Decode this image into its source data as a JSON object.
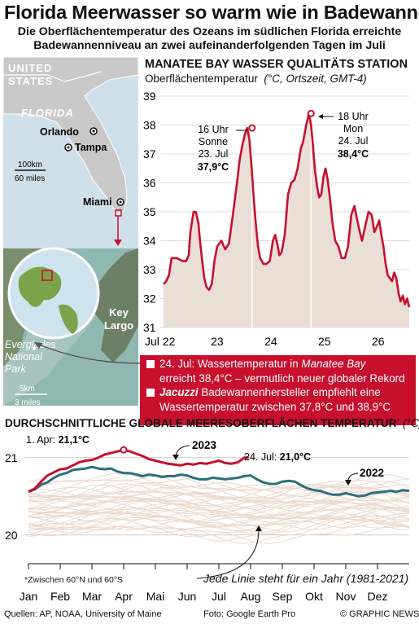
{
  "title": "Florida Meerwasser so warm wie in Badewanne",
  "subtitle_line1": "Die Oberflächentemperatur des Ozeans im südlichen Florida erreichte",
  "subtitle_line2": "Badewannenniveau an zwei aufeinanderfolgenden Tagen im Juli",
  "map": {
    "country_line1": "UNITED",
    "country_line2": "STATES",
    "state": "FLORIDA",
    "cities": [
      "Orlando",
      "Tampa",
      "Miami"
    ],
    "scale_top_km": "100km",
    "scale_top_miles": "60 miles",
    "inset_label1": "Everglades",
    "inset_label2": "National",
    "inset_label3": "Park",
    "key1": "Key",
    "key2": "Largo",
    "scale_bottom_km": "5km",
    "scale_bottom_miles": "3 miles",
    "colors": {
      "land": "#c8c8c8",
      "water": "#8fb7cf",
      "accent": "#c8102e"
    }
  },
  "chart1": {
    "title": "MANATEE BAY WASSER QUALITÄTS STATION",
    "subtitle_main": "Oberflächentemperatur",
    "subtitle_unit": "(°C, Ortszeit, GMT-4)",
    "peak1_time": "16 Uhr",
    "peak1_day": "Sonne",
    "peak1_date": "23. Jul",
    "peak1_value": "37,9°C",
    "peak2_time": "18 Uhr",
    "peak2_day": "Mon",
    "peak2_date": "24. Jul",
    "peak2_value": "38,4°C"
  },
  "callout": {
    "item1_a": "24. Jul: Wassertemperatur in ",
    "item1_b": "Manatee Bay",
    "item1_c": "erreicht 38,4°C – vermutlich neuer globaler Rekord",
    "item2_a": "Jacuzzi",
    "item2_b": " Badewannenhersteller empfiehlt eine",
    "item2_c": "Wassertemperatur zwischen 37,8°C und 38,9°C"
  },
  "chart2": {
    "title": "DURCHSCHNITTLICHE GLOBALE MEERESOBERFLÄCHEN TEMPERATUR",
    "title_sup": "*",
    "unit": "(°C)",
    "label_2023": "2023",
    "label_2022": "2022",
    "apr_note_a": "1. Apr: ",
    "apr_note_b": "21,1°C",
    "jul_note_a": "24. Jul: ",
    "jul_note_b": "21,0°C"
  },
  "footnote": "*Zwischen 60°N und 60°S",
  "lines_note": "Jede Linie steht für ein Jahr (1981-2021)",
  "sources": "Quellen: AP, NOAA, University of Maine",
  "photo": "Foto: Google Earth Pro",
  "credit": "© GRAPHIC NEWS",
  "colors": {
    "red": "#c8102e",
    "teal": "#2c6e80",
    "area": "#eadfd6",
    "faint": "#ecd9cc"
  },
  "chart_data": [
    {
      "type": "area",
      "title": "MANATEE BAY WASSER QUALITÄTS STATION",
      "ylabel": "Oberflächentemperatur (°C)",
      "x_ticks": [
        "Jul 22",
        "23",
        "24",
        "25",
        "26"
      ],
      "y_ticks": [
        31,
        32,
        33,
        34,
        35,
        36,
        37,
        38,
        39
      ],
      "xlim": [
        22.0,
        26.58
      ],
      "ylim": [
        31,
        39
      ],
      "series": [
        {
          "x": [
            22.0,
            22.05,
            22.1,
            22.15,
            22.25,
            22.35,
            22.42,
            22.47,
            22.5,
            22.56,
            22.6,
            22.65,
            22.68,
            22.72,
            22.76,
            22.8,
            22.85,
            22.9,
            22.95,
            23.0,
            23.08,
            23.15,
            23.22,
            23.3,
            23.37,
            23.42,
            23.47,
            23.52,
            23.56,
            23.6,
            23.64,
            23.68,
            23.72,
            23.76,
            23.8,
            23.86,
            23.92,
            23.98,
            24.04,
            24.08,
            24.12,
            24.16,
            24.2,
            24.26,
            24.32,
            24.38,
            24.44,
            24.5,
            24.56,
            24.6,
            24.66,
            24.71,
            24.75,
            24.78,
            24.82,
            24.86,
            24.9,
            24.94,
            24.98,
            25.02,
            25.06,
            25.1,
            25.15,
            25.2,
            25.26,
            25.32,
            25.38,
            25.44,
            25.5,
            25.56,
            25.6,
            25.66,
            25.7,
            25.76,
            25.82,
            25.88,
            25.93,
            25.98,
            26.02,
            26.06,
            26.1,
            26.14,
            26.18,
            26.22,
            26.26,
            26.3,
            26.34,
            26.38,
            26.42,
            26.46,
            26.5,
            26.54,
            26.58
          ],
          "y": [
            32.5,
            32.6,
            32.8,
            33.4,
            33.4,
            33.3,
            33.3,
            33.5,
            34.3,
            35.0,
            35.0,
            34.6,
            34.0,
            33.3,
            32.7,
            32.4,
            32.3,
            32.5,
            33.3,
            33.8,
            34.0,
            33.7,
            33.9,
            35.0,
            36.0,
            36.8,
            37.3,
            37.7,
            37.9,
            37.5,
            36.6,
            35.5,
            34.6,
            33.8,
            33.4,
            33.2,
            33.2,
            33.3,
            34.0,
            34.2,
            33.9,
            33.5,
            33.6,
            34.2,
            35.6,
            36.0,
            36.1,
            36.5,
            37.2,
            37.4,
            38.0,
            38.4,
            38.0,
            37.4,
            36.5,
            35.9,
            35.5,
            35.6,
            36.2,
            36.5,
            36.1,
            35.5,
            34.6,
            34.0,
            33.8,
            33.4,
            33.4,
            33.8,
            34.9,
            35.2,
            34.8,
            34.3,
            34.0,
            34.5,
            35.0,
            34.9,
            34.3,
            34.5,
            34.7,
            34.2,
            33.8,
            33.2,
            32.8,
            32.7,
            32.6,
            32.9,
            32.7,
            32.2,
            31.9,
            32.1,
            31.8,
            32.0,
            31.7
          ]
        }
      ],
      "annotations": [
        {
          "x": 23.65,
          "y": 37.9,
          "text": "37,9°C"
        },
        {
          "x": 24.75,
          "y": 38.4,
          "text": "38,4°C"
        }
      ]
    },
    {
      "type": "line",
      "title": "DURCHSCHNITTLICHE GLOBALE MEERESOBERFLÄCHEN TEMPERATUR",
      "x_ticks": [
        "Jan",
        "Feb",
        "Mar",
        "Apr",
        "Mai",
        "Jun",
        "Jul",
        "Aug",
        "Sep",
        "Okt",
        "Nov",
        "Dez"
      ],
      "y_ticks": [
        20,
        21
      ],
      "xlim": [
        0,
        12
      ],
      "ylim": [
        19.65,
        21.25
      ],
      "series": [
        {
          "name": "2023",
          "x": [
            0.0,
            0.2,
            0.4,
            0.6,
            0.8,
            1.0,
            1.2,
            1.4,
            1.6,
            1.8,
            2.0,
            2.2,
            2.4,
            2.6,
            2.8,
            3.0,
            3.2,
            3.4,
            3.6,
            3.8,
            4.0,
            4.2,
            4.4,
            4.6,
            4.8,
            5.0,
            5.2,
            5.4,
            5.6,
            5.8,
            6.0,
            6.2,
            6.4,
            6.6,
            6.8,
            6.94
          ],
          "y": [
            20.56,
            20.6,
            20.69,
            20.77,
            20.81,
            20.85,
            20.86,
            20.9,
            20.94,
            20.96,
            20.97,
            21.0,
            21.04,
            21.06,
            21.08,
            21.1,
            21.08,
            21.05,
            21.02,
            20.98,
            20.96,
            20.94,
            20.92,
            20.91,
            20.9,
            20.92,
            20.91,
            20.93,
            20.92,
            20.94,
            20.96,
            20.93,
            20.92,
            20.94,
            21.0,
            21.0
          ]
        },
        {
          "name": "2022",
          "x": [
            0.0,
            0.2,
            0.4,
            0.6,
            0.8,
            1.0,
            1.2,
            1.4,
            1.6,
            1.8,
            2.0,
            2.2,
            2.4,
            2.6,
            2.8,
            3.0,
            3.2,
            3.4,
            3.6,
            3.8,
            4.0,
            4.2,
            4.4,
            4.6,
            4.8,
            5.0,
            5.2,
            5.4,
            5.6,
            5.8,
            6.0,
            6.2,
            6.4,
            6.6,
            6.8,
            7.0,
            7.2,
            7.4,
            7.6,
            7.8,
            8.0,
            8.2,
            8.4,
            8.6,
            8.8,
            9.0,
            9.2,
            9.4,
            9.6,
            9.8,
            10.0,
            10.2,
            10.4,
            10.6,
            10.8,
            11.0,
            11.2,
            11.4,
            11.6,
            11.8,
            12.0
          ],
          "y": [
            20.56,
            20.59,
            20.65,
            20.68,
            20.74,
            20.78,
            20.8,
            20.84,
            20.85,
            20.86,
            20.88,
            20.86,
            20.85,
            20.86,
            20.82,
            20.8,
            20.8,
            20.78,
            20.76,
            20.78,
            20.77,
            20.75,
            20.76,
            20.76,
            20.78,
            20.77,
            20.74,
            20.72,
            20.72,
            20.74,
            20.73,
            20.72,
            20.73,
            20.74,
            20.76,
            20.77,
            20.72,
            20.68,
            20.66,
            20.66,
            20.69,
            20.7,
            20.69,
            20.64,
            20.6,
            20.58,
            20.57,
            20.54,
            20.52,
            20.52,
            20.54,
            20.52,
            20.5,
            20.51,
            20.54,
            20.55,
            20.56,
            20.57,
            20.56,
            20.58,
            20.57
          ]
        }
      ],
      "annotations": [
        {
          "x": 3.0,
          "y": 21.1,
          "text": "1. Apr: 21,1°C"
        },
        {
          "x": 6.94,
          "y": 21.0,
          "text": "24. Jul: 21,0°C"
        }
      ]
    }
  ]
}
